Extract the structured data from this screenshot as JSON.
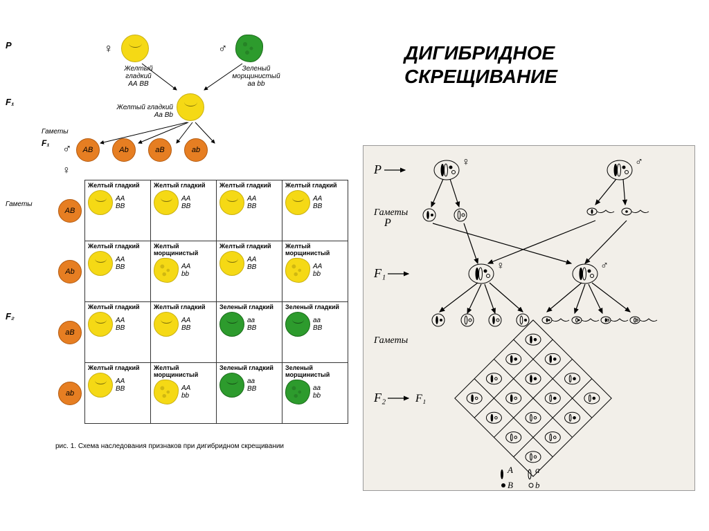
{
  "title_line1": "ДИГИБРИДНОЕ",
  "title_line2": "СКРЕЩИВАНИЕ",
  "generation_labels": {
    "P": "P",
    "F1": "F₁",
    "F2": "F₂",
    "gametes": "Гаметы",
    "gametes_P": "Гаметы P"
  },
  "parents": {
    "female": {
      "phenotype_line1": "Желтый",
      "phenotype_line2": "гладкий",
      "genotype": "АА ВВ",
      "color": "#f5d915"
    },
    "male": {
      "phenotype_line1": "Зеленый",
      "phenotype_line2": "морщинистый",
      "genotype": "аа bb",
      "color": "#2d9b2d"
    },
    "sex_female": "♀",
    "sex_male": "♂"
  },
  "f1": {
    "phenotype": "Желтый гладкий",
    "genotype": "Аа Bb",
    "color": "#f5d915"
  },
  "gametes_f1": [
    "AB",
    "Ab",
    "aB",
    "ab"
  ],
  "gamete_color": "#e67e22",
  "row_headers": [
    "AB",
    "Ab",
    "aB",
    "ab"
  ],
  "punnett": [
    [
      {
        "t": "Желтый гладкий",
        "g1": "АА",
        "g2": "ВВ",
        "c": "#f5d915",
        "s": "smooth"
      },
      {
        "t": "Желтый гладкий",
        "g1": "АА",
        "g2": "ВВ",
        "c": "#f5d915",
        "s": "smooth"
      },
      {
        "t": "Желтый гладкий",
        "g1": "АА",
        "g2": "ВВ",
        "c": "#f5d915",
        "s": "smooth"
      },
      {
        "t": "Желтый гладкий",
        "g1": "АА",
        "g2": "ВВ",
        "c": "#f5d915",
        "s": "smooth"
      }
    ],
    [
      {
        "t": "Желтый гладкий",
        "g1": "АА",
        "g2": "ВВ",
        "c": "#f5d915",
        "s": "smooth"
      },
      {
        "t": "Желтый морщинистый",
        "g1": "АА",
        "g2": "bb",
        "c": "#f5d915",
        "s": "wrinkled"
      },
      {
        "t": "Желтый гладкий",
        "g1": "АА",
        "g2": "ВВ",
        "c": "#f5d915",
        "s": "smooth"
      },
      {
        "t": "Желтый морщинистый",
        "g1": "АА",
        "g2": "bb",
        "c": "#f5d915",
        "s": "wrinkled"
      }
    ],
    [
      {
        "t": "Желтый гладкий",
        "g1": "АА",
        "g2": "ВВ",
        "c": "#f5d915",
        "s": "smooth"
      },
      {
        "t": "Желтый гладкий",
        "g1": "АА",
        "g2": "ВВ",
        "c": "#f5d915",
        "s": "smooth"
      },
      {
        "t": "Зеленый гладкий",
        "g1": "аа",
        "g2": "ВВ",
        "c": "#2d9b2d",
        "s": "smooth"
      },
      {
        "t": "Зеленый гладкий",
        "g1": "аа",
        "g2": "ВВ",
        "c": "#2d9b2d",
        "s": "smooth"
      }
    ],
    [
      {
        "t": "Желтый гладкий",
        "g1": "АА",
        "g2": "ВВ",
        "c": "#f5d915",
        "s": "smooth"
      },
      {
        "t": "Желтый морщинистый",
        "g1": "АА",
        "g2": "bb",
        "c": "#f5d915",
        "s": "wrinkled"
      },
      {
        "t": "Зеленый гладкий",
        "g1": "аа",
        "g2": "ВВ",
        "c": "#2d9b2d",
        "s": "smooth"
      },
      {
        "t": "Зеленый морщинистый",
        "g1": "аа",
        "g2": "bb",
        "c": "#2d9b2d",
        "s": "wrinkled"
      }
    ]
  ],
  "caption": "рис. 1. Схема наследования признаков при дигибридном скрещивании",
  "right": {
    "P": "P",
    "F1": "F₁",
    "F2": "F₂",
    "gametes": "Гаметы",
    "legend_A": "A",
    "legend_a": "a",
    "legend_B": "B",
    "legend_b": "b"
  },
  "colors": {
    "yellow": "#f5d915",
    "green": "#2d9b2d",
    "orange": "#e67e22",
    "bg_right": "#f2efe9"
  }
}
